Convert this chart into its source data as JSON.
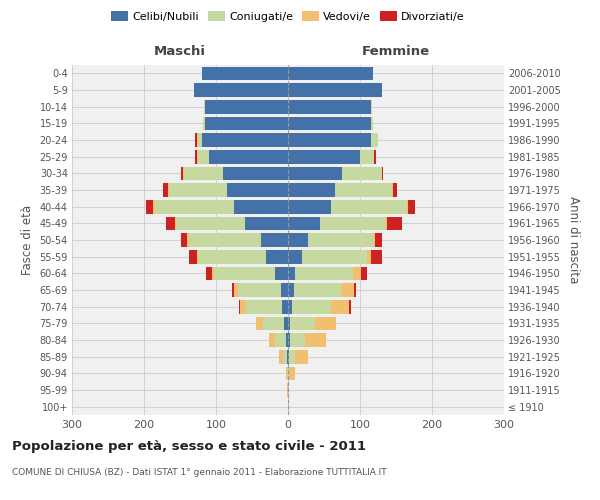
{
  "age_groups": [
    "100+",
    "95-99",
    "90-94",
    "85-89",
    "80-84",
    "75-79",
    "70-74",
    "65-69",
    "60-64",
    "55-59",
    "50-54",
    "45-49",
    "40-44",
    "35-39",
    "30-34",
    "25-29",
    "20-24",
    "15-19",
    "10-14",
    "5-9",
    "0-4"
  ],
  "birth_years": [
    "≤ 1910",
    "1911-1915",
    "1916-1920",
    "1921-1925",
    "1926-1930",
    "1931-1935",
    "1936-1940",
    "1941-1945",
    "1946-1950",
    "1951-1955",
    "1956-1960",
    "1961-1965",
    "1966-1970",
    "1971-1975",
    "1976-1980",
    "1981-1985",
    "1986-1990",
    "1991-1995",
    "1996-2000",
    "2001-2005",
    "2006-2010"
  ],
  "maschi": {
    "celibi": [
      0,
      0,
      0,
      2,
      3,
      5,
      8,
      10,
      18,
      30,
      38,
      60,
      75,
      85,
      90,
      110,
      120,
      115,
      115,
      130,
      120
    ],
    "coniugati": [
      0,
      0,
      1,
      5,
      15,
      30,
      50,
      60,
      85,
      95,
      100,
      95,
      110,
      80,
      55,
      15,
      5,
      3,
      2,
      0,
      0
    ],
    "vedovi": [
      0,
      1,
      2,
      5,
      8,
      10,
      8,
      5,
      3,
      2,
      2,
      2,
      2,
      1,
      1,
      2,
      2,
      0,
      0,
      0,
      0
    ],
    "divorziati": [
      0,
      0,
      0,
      0,
      0,
      0,
      2,
      3,
      8,
      10,
      8,
      12,
      10,
      8,
      2,
      2,
      2,
      0,
      0,
      0,
      0
    ]
  },
  "femmine": {
    "nubili": [
      0,
      0,
      0,
      2,
      3,
      3,
      5,
      8,
      10,
      20,
      28,
      45,
      60,
      65,
      75,
      100,
      115,
      115,
      115,
      130,
      118
    ],
    "coniugate": [
      0,
      0,
      2,
      8,
      20,
      35,
      55,
      65,
      80,
      90,
      90,
      90,
      105,
      80,
      55,
      20,
      10,
      3,
      2,
      0,
      0
    ],
    "vedove": [
      0,
      2,
      8,
      18,
      30,
      28,
      25,
      18,
      12,
      5,
      3,
      3,
      2,
      1,
      0,
      0,
      0,
      0,
      0,
      0,
      0
    ],
    "divorziate": [
      0,
      0,
      0,
      0,
      0,
      0,
      2,
      3,
      8,
      15,
      10,
      20,
      10,
      5,
      2,
      2,
      0,
      0,
      0,
      0,
      0
    ]
  },
  "color_celibi": "#4472a8",
  "color_coniugati": "#c5d9a0",
  "color_vedovi": "#f0c070",
  "color_divorziati": "#cc2222",
  "title": "Popolazione per età, sesso e stato civile - 2011",
  "subtitle": "COMUNE DI CHIUSA (BZ) - Dati ISTAT 1° gennaio 2011 - Elaborazione TUTTITALIA.IT",
  "xlabel_maschi": "Maschi",
  "xlabel_femmine": "Femmine",
  "ylabel_left": "Fasce di età",
  "ylabel_right": "Anni di nascita",
  "xlim": 300,
  "bg_color": "#ffffff",
  "grid_color": "#cccccc",
  "panel_color": "#f0f0f0"
}
